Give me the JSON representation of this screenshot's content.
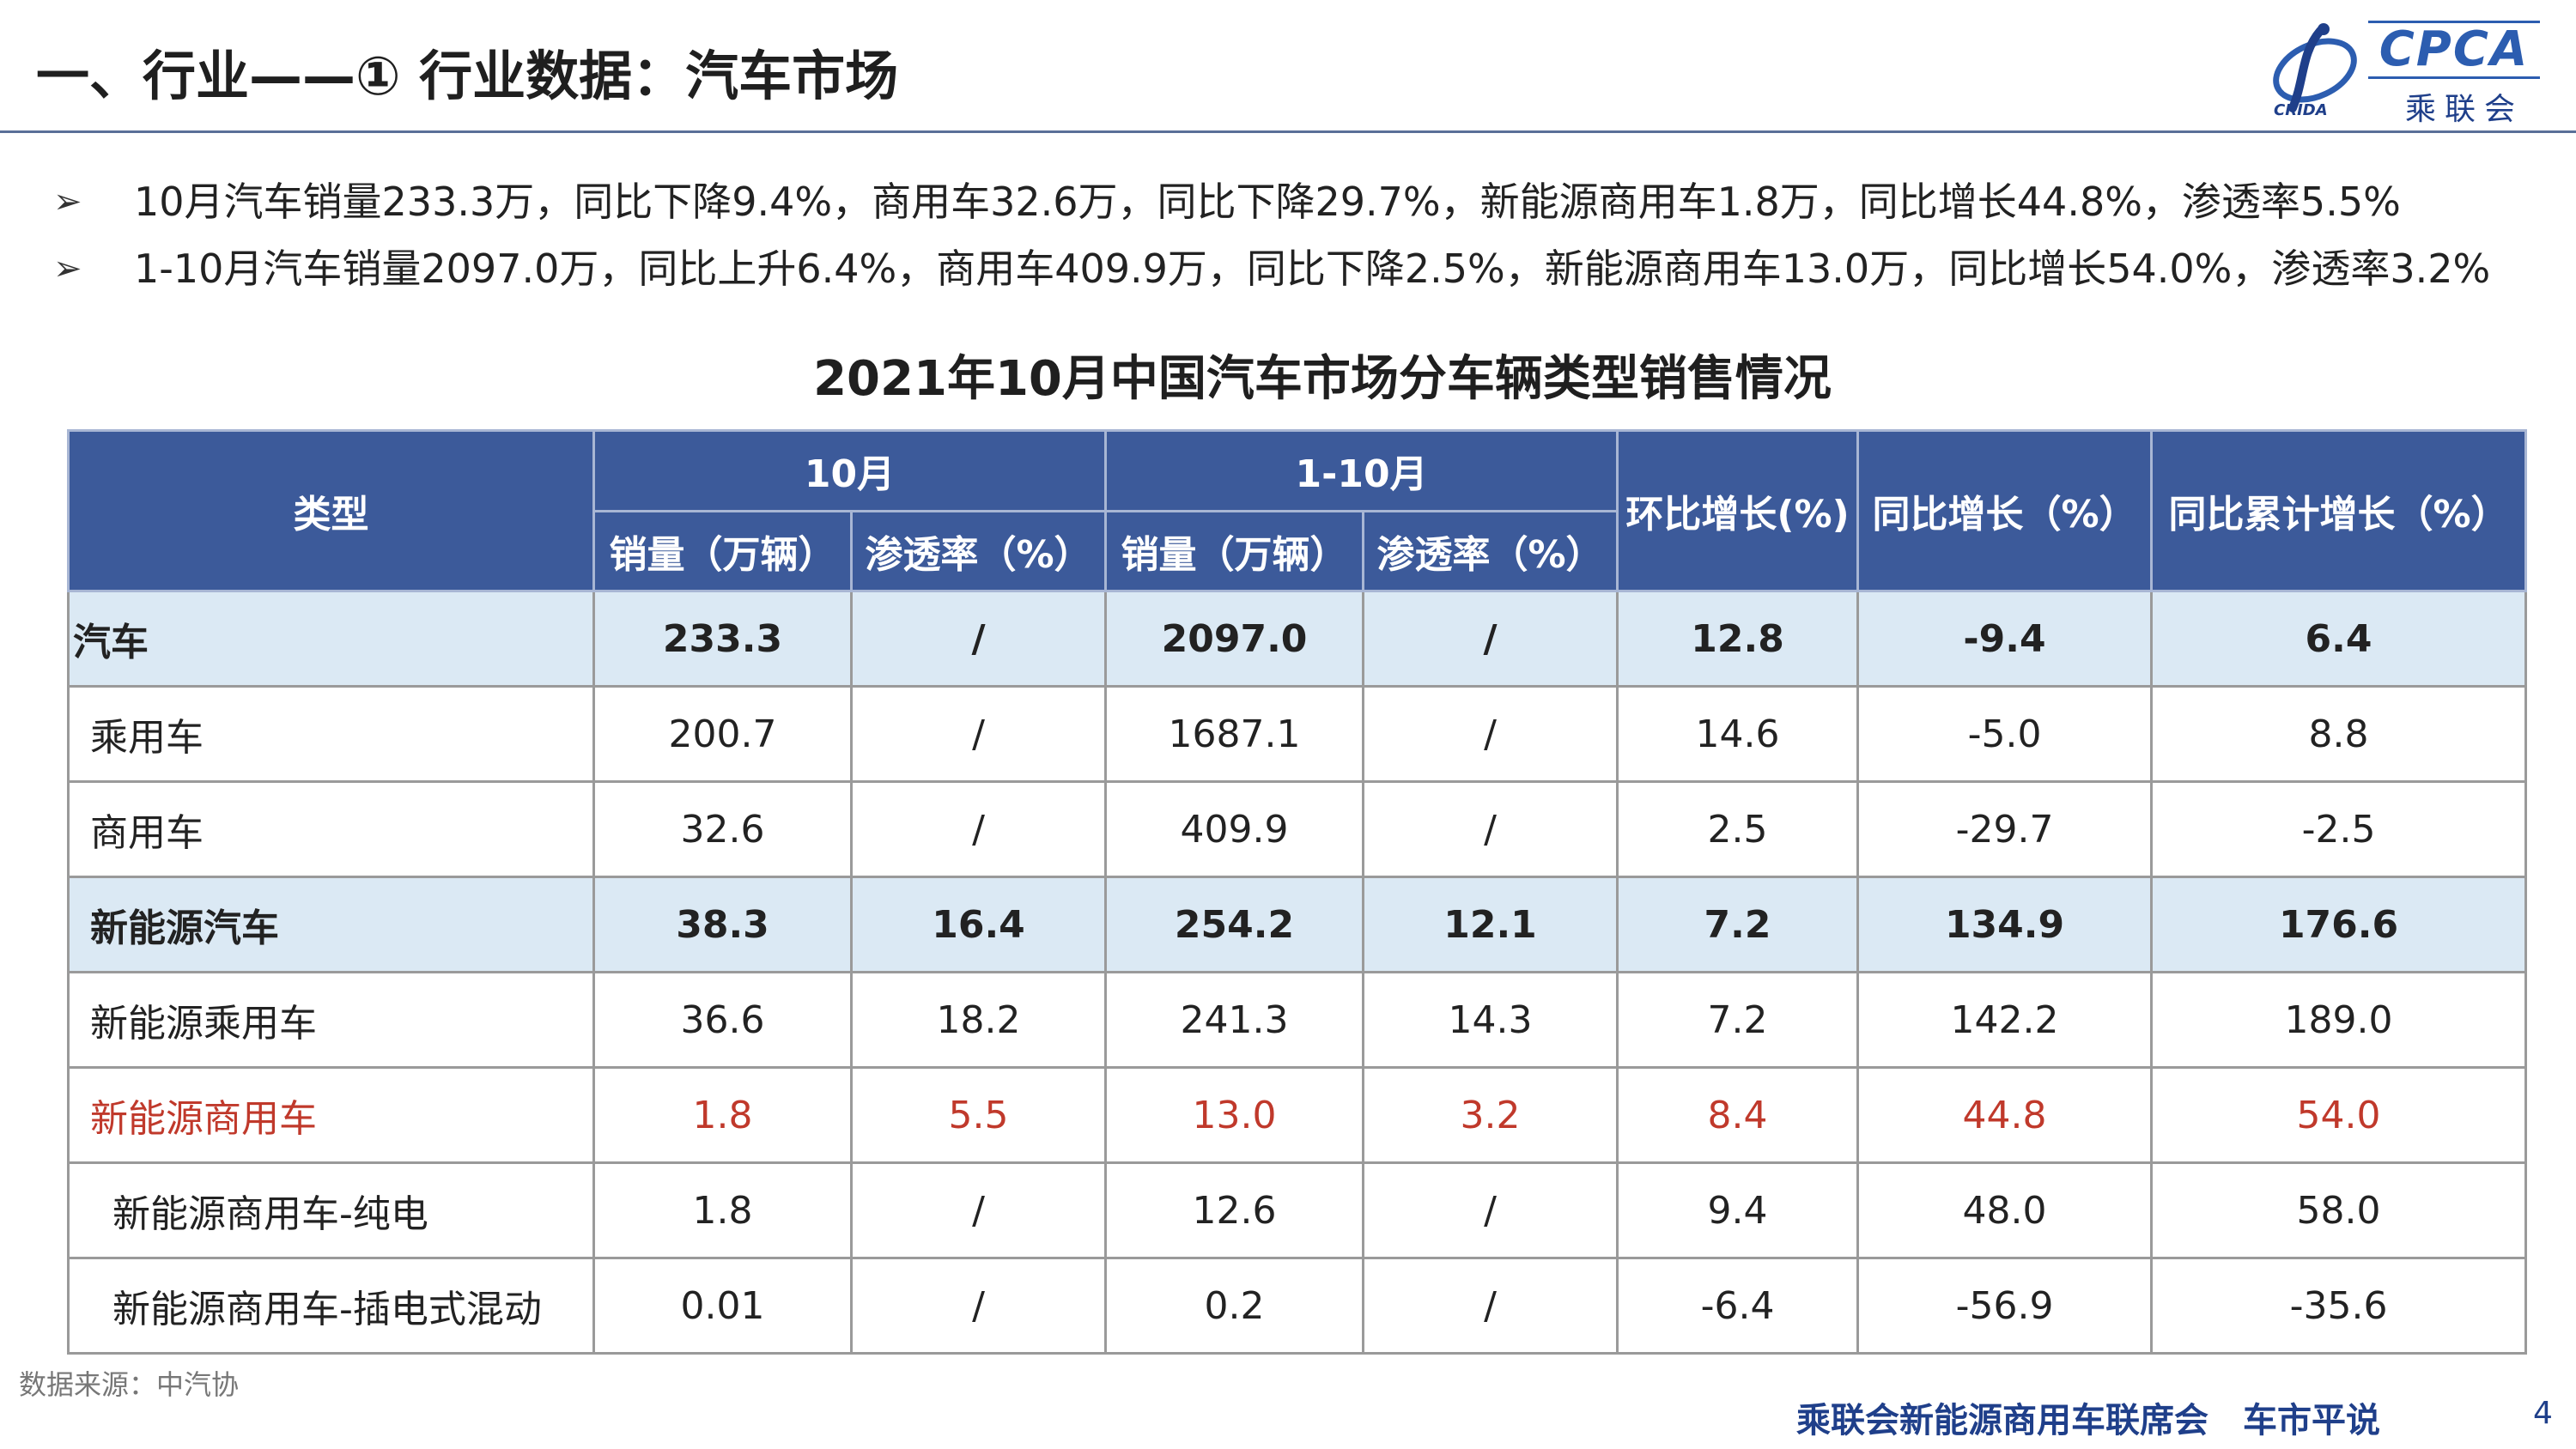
{
  "header": {
    "title": "一、行业——① 行业数据：汽车市场",
    "logo_text": "CPCA",
    "logo_cn": "乘联会",
    "logo_small": "CRIDA"
  },
  "bullets": [
    "10月汽车销量233.3万，同比下降9.4%，商用车32.6万，同比下降29.7%，新能源商用车1.8万，同比增长44.8%，渗透率5.5%",
    "1-10月汽车销量2097.0万，同比上升6.4%，商用车409.9万，同比下降2.5%，新能源商用车13.0万，同比增长54.0%，渗透率3.2%"
  ],
  "bullet_marker": "➢",
  "table": {
    "title": "2021年10月中国汽车市场分车辆类型销售情况",
    "headers": {
      "type": "类型",
      "oct": "10月",
      "jan_oct": "1-10月",
      "sales": "销量（万辆）",
      "penetration": "渗透率（%）",
      "mom": "环比增长(%)",
      "yoy": "同比增长（%）",
      "ytd_yoy": "同比累计增长（%）"
    },
    "rows": [
      {
        "name": "汽车",
        "oct_sales": "233.3",
        "oct_pen": "/",
        "ytd_sales": "2097.0",
        "ytd_pen": "/",
        "mom": "12.8",
        "yoy": "-9.4",
        "ytd_yoy": "6.4"
      },
      {
        "name": "乘用车",
        "oct_sales": "200.7",
        "oct_pen": "/",
        "ytd_sales": "1687.1",
        "ytd_pen": "/",
        "mom": "14.6",
        "yoy": "-5.0",
        "ytd_yoy": "8.8"
      },
      {
        "name": "商用车",
        "oct_sales": "32.6",
        "oct_pen": "/",
        "ytd_sales": "409.9",
        "ytd_pen": "/",
        "mom": "2.5",
        "yoy": "-29.7",
        "ytd_yoy": "-2.5"
      },
      {
        "name": "新能源汽车",
        "oct_sales": "38.3",
        "oct_pen": "16.4",
        "ytd_sales": "254.2",
        "ytd_pen": "12.1",
        "mom": "7.2",
        "yoy": "134.9",
        "ytd_yoy": "176.6"
      },
      {
        "name": "新能源乘用车",
        "oct_sales": "36.6",
        "oct_pen": "18.2",
        "ytd_sales": "241.3",
        "ytd_pen": "14.3",
        "mom": "7.2",
        "yoy": "142.2",
        "ytd_yoy": "189.0"
      },
      {
        "name": "新能源商用车",
        "oct_sales": "1.8",
        "oct_pen": "5.5",
        "ytd_sales": "13.0",
        "ytd_pen": "3.2",
        "mom": "8.4",
        "yoy": "44.8",
        "ytd_yoy": "54.0"
      },
      {
        "name": "新能源商用车-纯电",
        "oct_sales": "1.8",
        "oct_pen": "/",
        "ytd_sales": "12.6",
        "ytd_pen": "/",
        "mom": "9.4",
        "yoy": "48.0",
        "ytd_yoy": "58.0"
      },
      {
        "name": "新能源商用车-插电式混动",
        "oct_sales": "0.01",
        "oct_pen": "/",
        "ytd_sales": "0.2",
        "ytd_pen": "/",
        "mom": "-6.4",
        "yoy": "-56.9",
        "ytd_yoy": "-35.6"
      }
    ]
  },
  "source": "数据来源：中汽协",
  "footer": "乘联会新能源商用车联席会　车市平说",
  "page_number": "4",
  "colors": {
    "header_blue": "#3c5a9a",
    "highlight_row": "#dbe9f4",
    "highlight_text_red": "#c0392b"
  }
}
